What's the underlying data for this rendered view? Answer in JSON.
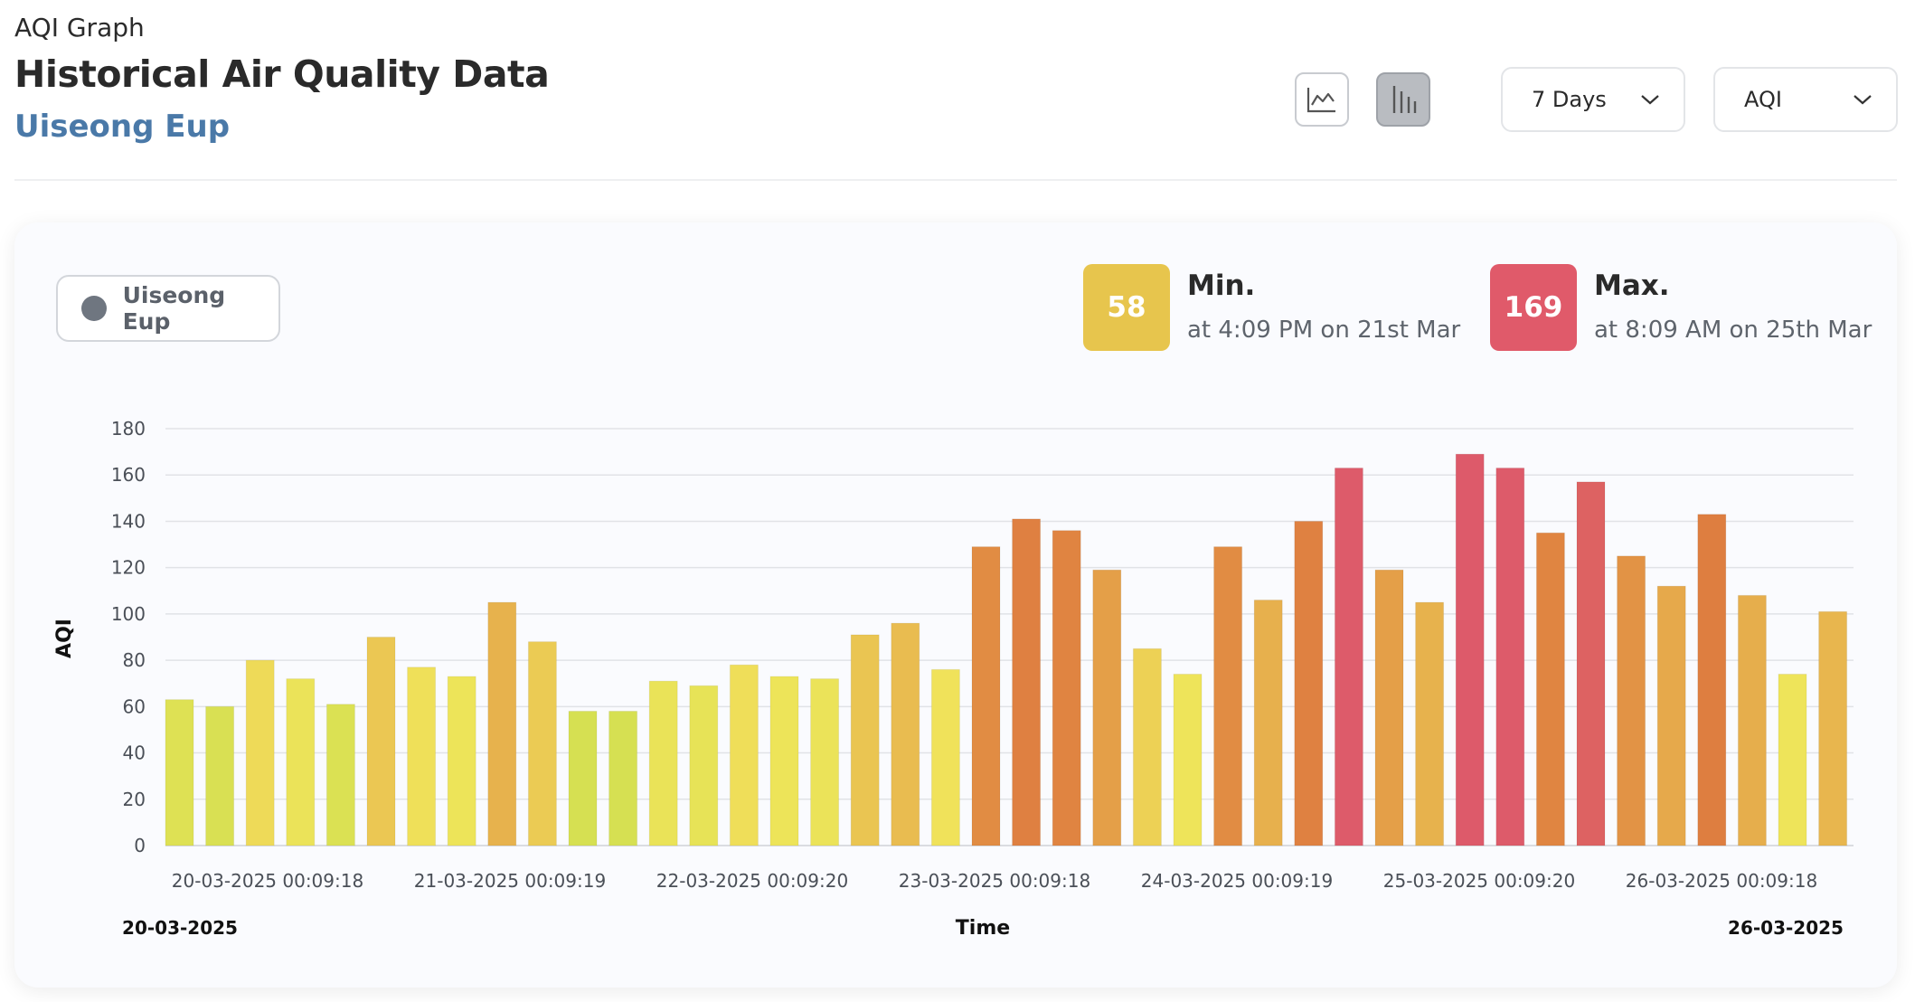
{
  "header": {
    "overline": "AQI Graph",
    "title": "Historical Air Quality Data",
    "location": "Uiseong Eup"
  },
  "controls": {
    "line_chart_icon": "line-chart-icon",
    "bar_chart_icon": "bar-chart-icon",
    "range_label": "7 Days",
    "metric_label": "AQI"
  },
  "legend": {
    "label": "Uiseong Eup",
    "dot_color": "#6f7680"
  },
  "stats": {
    "min": {
      "value": "58",
      "label": "Min.",
      "desc": "at 4:09 PM on 21st Mar",
      "color": "#e7c54d"
    },
    "max": {
      "value": "169",
      "label": "Max.",
      "desc": "at 8:09 AM on 25th Mar",
      "color": "#e05a6a"
    }
  },
  "chart_data": {
    "type": "bar",
    "ylabel": "AQI",
    "xlabel": "Time",
    "ylim": [
      0,
      180
    ],
    "yticks": [
      0,
      20,
      40,
      60,
      80,
      100,
      120,
      140,
      160,
      180
    ],
    "grid": true,
    "x_tick_labels": [
      "20-03-2025 00:09:18",
      "21-03-2025 00:09:19",
      "22-03-2025 00:09:20",
      "23-03-2025 00:09:18",
      "24-03-2025 00:09:19",
      "25-03-2025 00:09:20",
      "26-03-2025 00:09:18"
    ],
    "start_date": "20-03-2025",
    "end_date": "26-03-2025",
    "values": [
      63,
      60,
      80,
      72,
      61,
      90,
      77,
      73,
      105,
      88,
      58,
      58,
      71,
      69,
      78,
      73,
      72,
      91,
      96,
      76,
      129,
      141,
      136,
      119,
      85,
      74,
      129,
      106,
      140,
      163,
      119,
      105,
      169,
      163,
      135,
      157,
      125,
      112,
      143,
      108,
      74,
      101
    ]
  }
}
